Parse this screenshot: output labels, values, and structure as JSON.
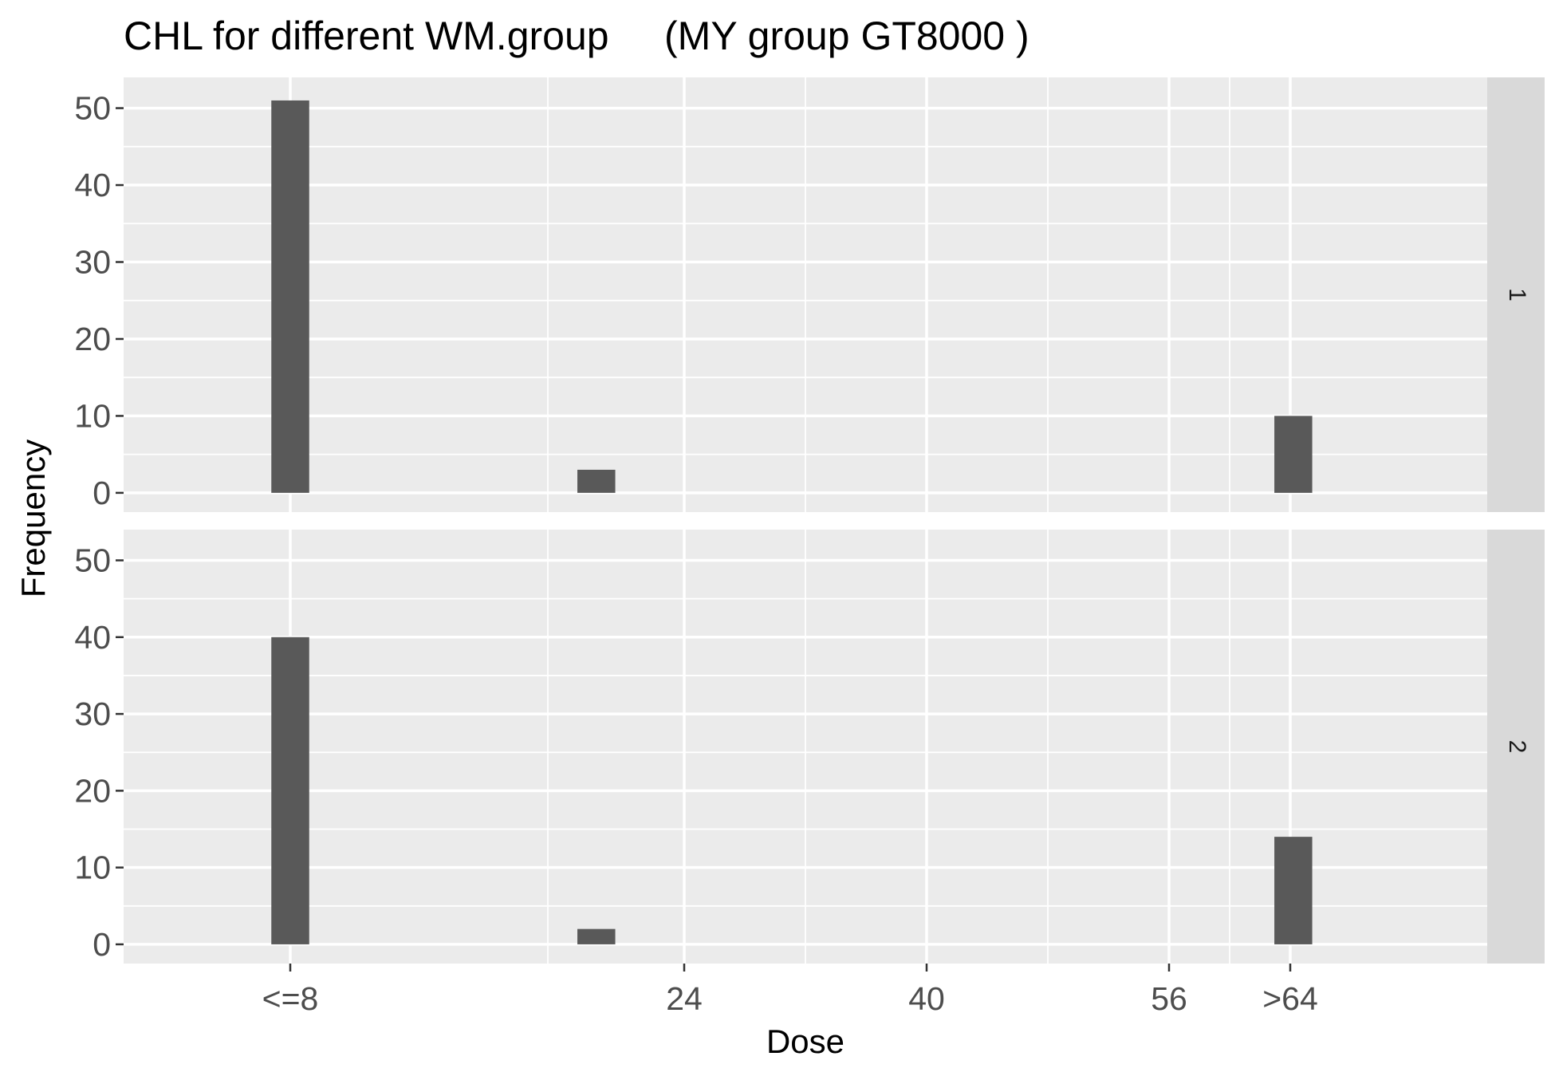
{
  "chart_data": {
    "type": "bar",
    "title": "CHL for different WM.group     (MY group GT8000 )",
    "xlabel": "Dose",
    "ylabel": "Frequency",
    "xlim": [
      -13,
      77
    ],
    "ylim": [
      -2.5,
      54
    ],
    "x_ticks": [
      {
        "value": -2,
        "label": "<=8"
      },
      {
        "value": 24,
        "label": "24"
      },
      {
        "value": 40,
        "label": "40"
      },
      {
        "value": 56,
        "label": "56"
      },
      {
        "value": 64,
        "label": ">64"
      }
    ],
    "x_minor_gridlines": [
      15,
      32,
      48,
      60
    ],
    "y_ticks": [
      0,
      10,
      20,
      30,
      40,
      50
    ],
    "bar_width": 2.5,
    "panels": [
      {
        "strip": "1",
        "bars": [
          {
            "x": -2,
            "value": 51
          },
          {
            "x": 18.2,
            "value": 3
          },
          {
            "x": 64.2,
            "value": 10
          }
        ]
      },
      {
        "strip": "2",
        "bars": [
          {
            "x": -2,
            "value": 40
          },
          {
            "x": 18.2,
            "value": 2
          },
          {
            "x": 64.2,
            "value": 14
          }
        ]
      }
    ]
  }
}
